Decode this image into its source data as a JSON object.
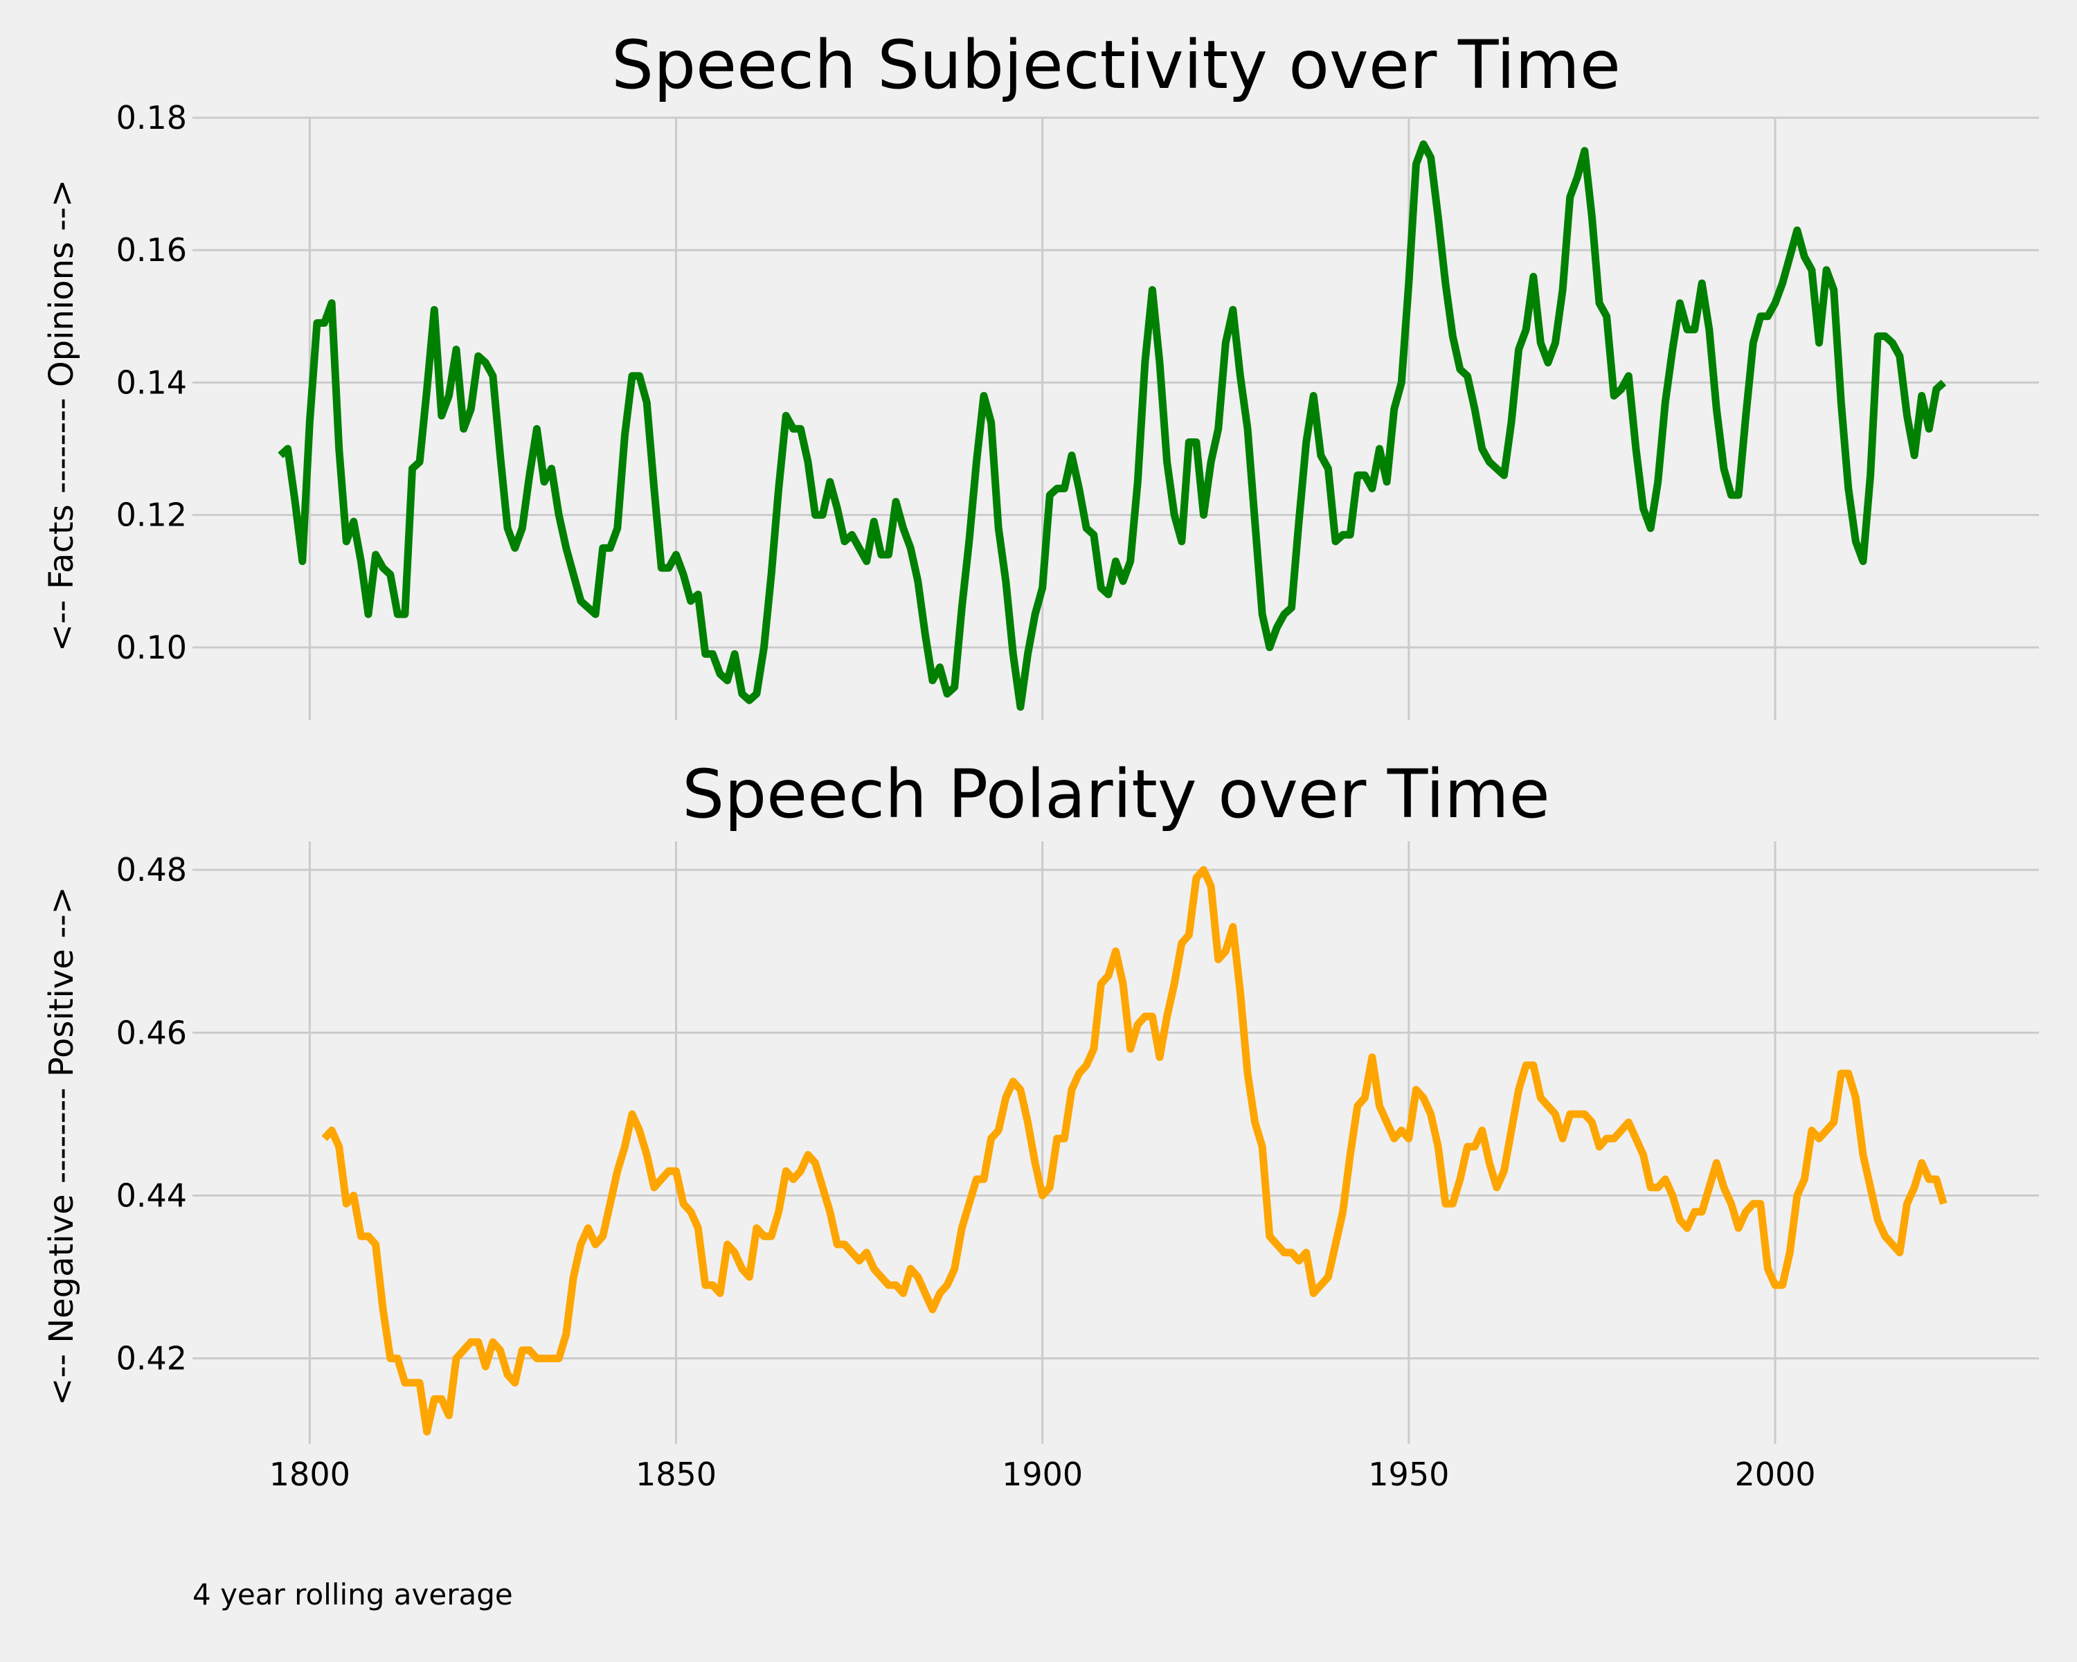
{
  "footnote": "4 year rolling average",
  "colors": {
    "background": "#f0f0f0",
    "grid": "#cbcbcb",
    "text": "#000000"
  },
  "chart_data": [
    {
      "type": "line",
      "title": "Speech Subjectivity over Time",
      "xlabel": "",
      "ylabel": "<-- Facts -------- Opinions -->",
      "xlim": [
        1784,
        2036
      ],
      "ylim": [
        0.089,
        0.18
      ],
      "x_ticks": [
        1800,
        1850,
        1900,
        1950,
        2000
      ],
      "x_tick_labels_visible": false,
      "y_ticks": [
        0.1,
        0.12,
        0.14,
        0.16,
        0.18
      ],
      "y_tick_labels": [
        "0.10",
        "0.12",
        "0.14",
        "0.16",
        "0.18"
      ],
      "grid": true,
      "series": [
        {
          "color": "#008000",
          "x": [
            1796,
            1797,
            1798,
            1799,
            1800,
            1801,
            1802,
            1803,
            1804,
            1805,
            1806,
            1807,
            1808,
            1809,
            1810,
            1811,
            1812,
            1813,
            1814,
            1815,
            1816,
            1817,
            1818,
            1819,
            1820,
            1821,
            1822,
            1823,
            1824,
            1825,
            1826,
            1827,
            1828,
            1829,
            1830,
            1831,
            1832,
            1833,
            1834,
            1835,
            1836,
            1837,
            1838,
            1839,
            1840,
            1841,
            1842,
            1843,
            1844,
            1845,
            1846,
            1847,
            1848,
            1849,
            1850,
            1851,
            1852,
            1853,
            1854,
            1855,
            1856,
            1857,
            1858,
            1859,
            1860,
            1861,
            1862,
            1863,
            1864,
            1865,
            1866,
            1867,
            1868,
            1869,
            1870,
            1871,
            1872,
            1873,
            1874,
            1875,
            1876,
            1877,
            1878,
            1879,
            1880,
            1881,
            1882,
            1883,
            1884,
            1885,
            1886,
            1887,
            1888,
            1889,
            1890,
            1891,
            1892,
            1893,
            1894,
            1895,
            1896,
            1897,
            1898,
            1899,
            1900,
            1901,
            1902,
            1903,
            1904,
            1905,
            1906,
            1907,
            1908,
            1909,
            1910,
            1911,
            1912,
            1913,
            1914,
            1915,
            1916,
            1917,
            1918,
            1919,
            1920,
            1921,
            1922,
            1923,
            1924,
            1925,
            1926,
            1927,
            1928,
            1929,
            1930,
            1931,
            1932,
            1933,
            1934,
            1935,
            1936,
            1937,
            1938,
            1939,
            1940,
            1941,
            1942,
            1943,
            1944,
            1945,
            1946,
            1947,
            1948,
            1949,
            1950,
            1951,
            1952,
            1953,
            1954,
            1955,
            1956,
            1957,
            1958,
            1959,
            1960,
            1961,
            1962,
            1963,
            1964,
            1965,
            1966,
            1967,
            1968,
            1969,
            1970,
            1971,
            1972,
            1973,
            1974,
            1975,
            1976,
            1977,
            1978,
            1979,
            1980,
            1981,
            1982,
            1983,
            1984,
            1985,
            1986,
            1987,
            1988,
            1989,
            1990,
            1991,
            1992,
            1993,
            1994,
            1995,
            1996,
            1997,
            1998,
            1999,
            2000,
            2001,
            2002,
            2003,
            2004,
            2005,
            2006,
            2007,
            2008,
            2009,
            2010,
            2011,
            2012,
            2013,
            2014,
            2015,
            2016,
            2017,
            2018,
            2019,
            2020,
            2021,
            2022,
            2023
          ],
          "y": [
            0.129,
            0.13,
            0.122,
            0.113,
            0.134,
            0.149,
            0.149,
            0.152,
            0.13,
            0.116,
            0.119,
            0.113,
            0.105,
            0.114,
            0.112,
            0.111,
            0.105,
            0.105,
            0.127,
            0.128,
            0.139,
            0.151,
            0.135,
            0.138,
            0.145,
            0.133,
            0.136,
            0.144,
            0.143,
            0.141,
            0.129,
            0.118,
            0.115,
            0.118,
            0.126,
            0.133,
            0.125,
            0.127,
            0.12,
            0.115,
            0.111,
            0.107,
            0.106,
            0.105,
            0.115,
            0.115,
            0.118,
            0.132,
            0.141,
            0.141,
            0.137,
            0.124,
            0.112,
            0.112,
            0.114,
            0.111,
            0.107,
            0.108,
            0.099,
            0.099,
            0.096,
            0.095,
            0.099,
            0.093,
            0.092,
            0.093,
            0.1,
            0.111,
            0.124,
            0.135,
            0.133,
            0.133,
            0.128,
            0.12,
            0.12,
            0.125,
            0.121,
            0.116,
            0.117,
            0.115,
            0.113,
            0.119,
            0.114,
            0.114,
            0.122,
            0.118,
            0.115,
            0.11,
            0.102,
            0.095,
            0.097,
            0.093,
            0.094,
            0.106,
            0.116,
            0.128,
            0.138,
            0.134,
            0.118,
            0.11,
            0.099,
            0.091,
            0.099,
            0.105,
            0.109,
            0.123,
            0.124,
            0.124,
            0.129,
            0.124,
            0.118,
            0.117,
            0.109,
            0.108,
            0.113,
            0.11,
            0.113,
            0.125,
            0.143,
            0.154,
            0.143,
            0.128,
            0.12,
            0.116,
            0.131,
            0.131,
            0.12,
            0.128,
            0.133,
            0.146,
            0.151,
            0.141,
            0.133,
            0.119,
            0.105,
            0.1,
            0.103,
            0.105,
            0.106,
            0.119,
            0.131,
            0.138,
            0.129,
            0.127,
            0.116,
            0.117,
            0.117,
            0.126,
            0.126,
            0.124,
            0.13,
            0.125,
            0.136,
            0.14,
            0.155,
            0.173,
            0.176,
            0.174,
            0.165,
            0.155,
            0.147,
            0.142,
            0.141,
            0.136,
            0.13,
            0.128,
            0.127,
            0.126,
            0.134,
            0.145,
            0.148,
            0.156,
            0.146,
            0.143,
            0.146,
            0.154,
            0.168,
            0.171,
            0.175,
            0.165,
            0.152,
            0.15,
            0.138,
            0.139,
            0.141,
            0.13,
            0.121,
            0.118,
            0.125,
            0.137,
            0.145,
            0.152,
            0.148,
            0.148,
            0.155,
            0.148,
            0.136,
            0.127,
            0.123,
            0.123,
            0.135,
            0.146,
            0.15,
            0.15,
            0.152,
            0.155,
            0.159,
            0.163,
            0.159,
            0.157,
            0.146,
            0.157,
            0.154,
            0.137,
            0.124,
            0.116,
            0.113,
            0.126,
            0.147,
            0.147,
            0.146,
            0.144,
            0.135,
            0.129,
            0.138,
            0.133,
            0.139,
            0.14
          ]
        }
      ]
    },
    {
      "type": "line",
      "title": "Speech Polarity over Time",
      "xlabel": "",
      "ylabel": "<-- Negative -------- Positive -->",
      "xlim": [
        1784,
        2036
      ],
      "ylim": [
        0.4095,
        0.4835
      ],
      "x_ticks": [
        1800,
        1850,
        1900,
        1950,
        2000
      ],
      "x_tick_labels": [
        "1800",
        "1850",
        "1900",
        "1950",
        "2000"
      ],
      "y_ticks": [
        0.42,
        0.44,
        0.46,
        0.48
      ],
      "y_tick_labels": [
        "0.42",
        "0.44",
        "0.46",
        "0.48"
      ],
      "grid": true,
      "series": [
        {
          "color": "#ffa500",
          "x": [
            1802,
            1803,
            1804,
            1805,
            1806,
            1807,
            1808,
            1809,
            1810,
            1811,
            1812,
            1813,
            1814,
            1815,
            1816,
            1817,
            1818,
            1819,
            1820,
            1821,
            1822,
            1823,
            1824,
            1825,
            1826,
            1827,
            1828,
            1829,
            1830,
            1831,
            1832,
            1833,
            1834,
            1835,
            1836,
            1837,
            1838,
            1839,
            1840,
            1841,
            1842,
            1843,
            1844,
            1845,
            1846,
            1847,
            1848,
            1849,
            1850,
            1851,
            1852,
            1853,
            1854,
            1855,
            1856,
            1857,
            1858,
            1859,
            1860,
            1861,
            1862,
            1863,
            1864,
            1865,
            1866,
            1867,
            1868,
            1869,
            1870,
            1871,
            1872,
            1873,
            1874,
            1875,
            1876,
            1877,
            1878,
            1879,
            1880,
            1881,
            1882,
            1883,
            1884,
            1885,
            1886,
            1887,
            1888,
            1889,
            1890,
            1891,
            1892,
            1893,
            1894,
            1895,
            1896,
            1897,
            1898,
            1899,
            1900,
            1901,
            1902,
            1903,
            1904,
            1905,
            1906,
            1907,
            1908,
            1909,
            1910,
            1911,
            1912,
            1913,
            1914,
            1915,
            1916,
            1917,
            1918,
            1919,
            1920,
            1921,
            1922,
            1923,
            1924,
            1925,
            1926,
            1927,
            1928,
            1929,
            1930,
            1931,
            1932,
            1933,
            1934,
            1935,
            1936,
            1937,
            1938,
            1939,
            1940,
            1941,
            1942,
            1943,
            1944,
            1945,
            1946,
            1947,
            1948,
            1949,
            1950,
            1951,
            1952,
            1953,
            1954,
            1955,
            1956,
            1957,
            1958,
            1959,
            1960,
            1961,
            1962,
            1963,
            1964,
            1965,
            1966,
            1967,
            1968,
            1969,
            1970,
            1971,
            1972,
            1973,
            1974,
            1975,
            1976,
            1977,
            1978,
            1979,
            1980,
            1981,
            1982,
            1983,
            1984,
            1985,
            1986,
            1987,
            1988,
            1989,
            1990,
            1991,
            1992,
            1993,
            1994,
            1995,
            1996,
            1997,
            1998,
            1999,
            2000,
            2001,
            2002,
            2003,
            2004,
            2005,
            2006,
            2007,
            2008,
            2009,
            2010,
            2011,
            2012,
            2013,
            2014,
            2015,
            2016,
            2017,
            2018,
            2019,
            2020,
            2021,
            2022,
            2023
          ],
          "y": [
            0.447,
            0.448,
            0.446,
            0.439,
            0.44,
            0.435,
            0.435,
            0.434,
            0.426,
            0.42,
            0.42,
            0.417,
            0.417,
            0.417,
            0.411,
            0.415,
            0.415,
            0.413,
            0.42,
            0.421,
            0.422,
            0.422,
            0.419,
            0.422,
            0.421,
            0.418,
            0.417,
            0.421,
            0.421,
            0.42,
            0.42,
            0.42,
            0.42,
            0.423,
            0.43,
            0.434,
            0.436,
            0.434,
            0.435,
            0.439,
            0.443,
            0.446,
            0.45,
            0.448,
            0.445,
            0.441,
            0.442,
            0.443,
            0.443,
            0.439,
            0.438,
            0.436,
            0.429,
            0.429,
            0.428,
            0.434,
            0.433,
            0.431,
            0.43,
            0.436,
            0.435,
            0.435,
            0.438,
            0.443,
            0.442,
            0.443,
            0.445,
            0.444,
            0.441,
            0.438,
            0.434,
            0.434,
            0.433,
            0.432,
            0.433,
            0.431,
            0.43,
            0.429,
            0.429,
            0.428,
            0.431,
            0.43,
            0.428,
            0.426,
            0.428,
            0.429,
            0.431,
            0.436,
            0.439,
            0.442,
            0.442,
            0.447,
            0.448,
            0.452,
            0.454,
            0.453,
            0.449,
            0.444,
            0.44,
            0.441,
            0.447,
            0.447,
            0.453,
            0.455,
            0.456,
            0.458,
            0.466,
            0.467,
            0.47,
            0.466,
            0.458,
            0.461,
            0.462,
            0.462,
            0.457,
            0.462,
            0.466,
            0.471,
            0.472,
            0.479,
            0.48,
            0.478,
            0.469,
            0.47,
            0.473,
            0.465,
            0.455,
            0.449,
            0.446,
            0.435,
            0.434,
            0.433,
            0.433,
            0.432,
            0.433,
            0.428,
            0.429,
            0.43,
            0.434,
            0.438,
            0.445,
            0.451,
            0.452,
            0.457,
            0.451,
            0.449,
            0.447,
            0.448,
            0.447,
            0.453,
            0.452,
            0.45,
            0.446,
            0.439,
            0.439,
            0.442,
            0.446,
            0.446,
            0.448,
            0.444,
            0.441,
            0.443,
            0.448,
            0.453,
            0.456,
            0.456,
            0.452,
            0.451,
            0.45,
            0.447,
            0.45,
            0.45,
            0.45,
            0.449,
            0.446,
            0.447,
            0.447,
            0.448,
            0.449,
            0.447,
            0.445,
            0.441,
            0.441,
            0.442,
            0.44,
            0.437,
            0.436,
            0.438,
            0.438,
            0.441,
            0.444,
            0.441,
            0.439,
            0.436,
            0.438,
            0.439,
            0.439,
            0.431,
            0.429,
            0.429,
            0.433,
            0.44,
            0.442,
            0.448,
            0.447,
            0.448,
            0.449,
            0.455,
            0.455,
            0.452,
            0.445,
            0.441,
            0.437,
            0.435,
            0.434,
            0.433,
            0.439,
            0.441,
            0.444,
            0.442,
            0.442,
            0.439
          ]
        }
      ]
    }
  ]
}
